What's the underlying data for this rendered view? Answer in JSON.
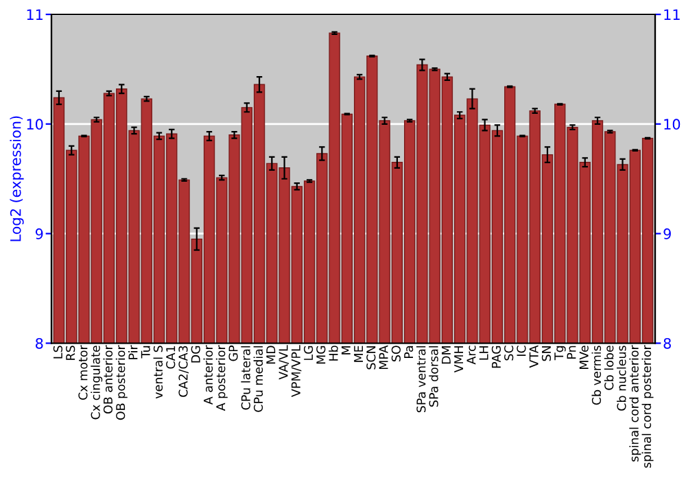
{
  "chart_data": {
    "type": "bar",
    "ylabel": "Log2 (expression)",
    "categories": [
      "LS",
      "RS",
      "Cx motor",
      "Cx cingulate",
      "OB anterior",
      "OB posterior",
      "Pir",
      "Tu",
      "ventral S",
      "CA1",
      "CA2/CA3",
      "DG",
      "A anterior",
      "A posterior",
      "GP",
      "CPu lateral",
      "CPu medial",
      "MD",
      "VA/VL",
      "VPM/VPL",
      "LG",
      "MG",
      "Hb",
      "M",
      "ME",
      "SCN",
      "MPA",
      "SO",
      "Pa",
      "SPa ventral",
      "SPa dorsal",
      "DM",
      "VMH",
      "Arc",
      "LH",
      "PAG",
      "SC",
      "IC",
      "VTA",
      "SN",
      "Tg",
      "Pn",
      "MVe",
      "Cb vermis",
      "Cb lobe",
      "Cb nucleus",
      "spinal cord anterior",
      "spinal cord posterior"
    ],
    "values": [
      10.24,
      9.76,
      9.89,
      10.04,
      10.28,
      10.32,
      9.94,
      10.23,
      9.89,
      9.91,
      9.49,
      8.95,
      9.89,
      9.51,
      9.9,
      10.15,
      10.36,
      9.64,
      9.6,
      9.43,
      9.48,
      9.73,
      10.83,
      10.09,
      10.43,
      10.62,
      10.03,
      9.65,
      10.03,
      10.54,
      10.5,
      10.43,
      10.08,
      10.23,
      9.99,
      9.94,
      10.34,
      9.89,
      10.12,
      9.72,
      10.18,
      9.97,
      9.65,
      10.03,
      9.93,
      9.63,
      9.76,
      9.87
    ],
    "errors": [
      0.06,
      0.04,
      0.005,
      0.02,
      0.02,
      0.04,
      0.03,
      0.02,
      0.03,
      0.04,
      0.01,
      0.1,
      0.04,
      0.02,
      0.03,
      0.04,
      0.07,
      0.06,
      0.1,
      0.03,
      0.01,
      0.06,
      0.01,
      0.005,
      0.02,
      0.005,
      0.03,
      0.05,
      0.01,
      0.05,
      0.01,
      0.03,
      0.03,
      0.09,
      0.05,
      0.05,
      0.005,
      0.005,
      0.02,
      0.07,
      0.005,
      0.02,
      0.04,
      0.03,
      0.01,
      0.05,
      0.005,
      0.005
    ],
    "color": "#b03232",
    "ylim": [
      8,
      11
    ],
    "yticks": [
      8,
      9,
      10,
      11
    ],
    "y2lim": [
      8,
      11
    ],
    "y2ticks": [
      8,
      9,
      10,
      11
    ],
    "grid": "y",
    "legend": false
  }
}
